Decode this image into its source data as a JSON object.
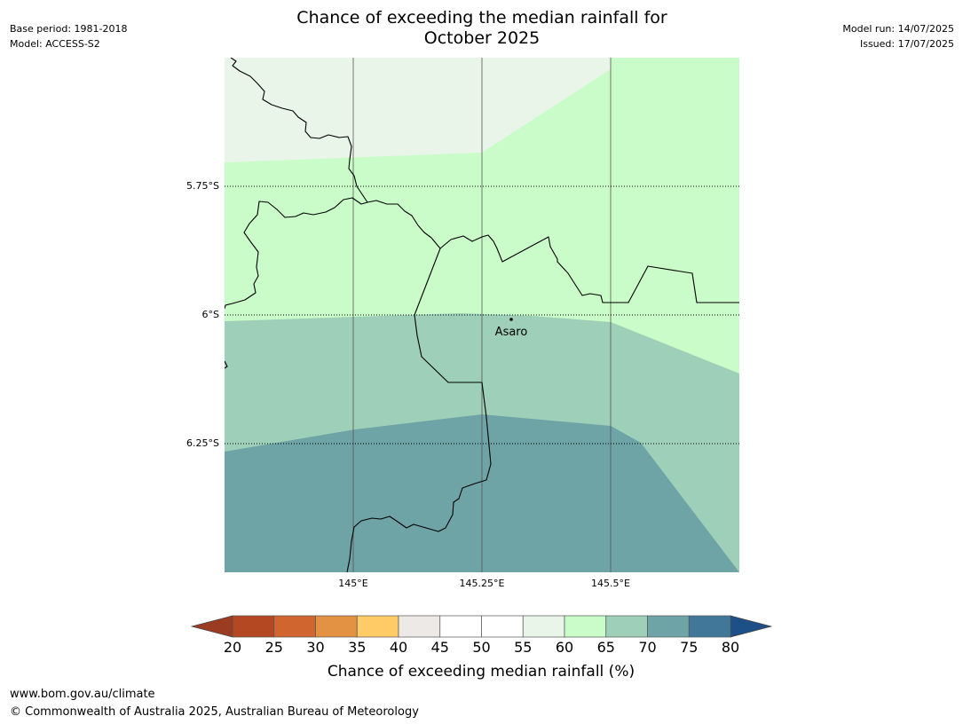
{
  "header": {
    "base_period": "Base period: 1981-2018",
    "model": "Model: ACCESS-S2",
    "model_run": "Model run: 14/07/2025",
    "issued": "Issued: 17/07/2025",
    "title_line1": "Chance of exceeding the median rainfall for",
    "title_line2": "October 2025"
  },
  "map": {
    "longitude_labels": [
      "145°E",
      "145.25°E",
      "145.5°E"
    ],
    "latitude_labels": [
      "5.75°S",
      "6°S",
      "6.25°S"
    ],
    "place_name": "Asaro",
    "zone_colors": {
      "55_60": "#e9f5e9",
      "60_65": "#c9fcc9",
      "65_70": "#9ecfb8",
      "70_75": "#6fa4a6"
    }
  },
  "colorbar": {
    "title": "Chance of exceeding median rainfall (%)",
    "tick_labels": [
      "20",
      "25",
      "30",
      "35",
      "40",
      "45",
      "50",
      "55",
      "60",
      "65",
      "70",
      "75",
      "80"
    ],
    "low_extend_color": "#9a3b22",
    "high_extend_color": "#1d5086",
    "bin_colors": [
      "#b44822",
      "#d06530",
      "#e39244",
      "#fecb66",
      "#ede9e6",
      "#ffffff",
      "#ffffff",
      "#e9f5e9",
      "#c9fcc9",
      "#9ecfb8",
      "#6fa4a6",
      "#41789a"
    ]
  },
  "footer": {
    "url": "www.bom.gov.au/climate",
    "copyright": "© Commonwealth of Australia 2025, Australian Bureau of Meteorology"
  }
}
